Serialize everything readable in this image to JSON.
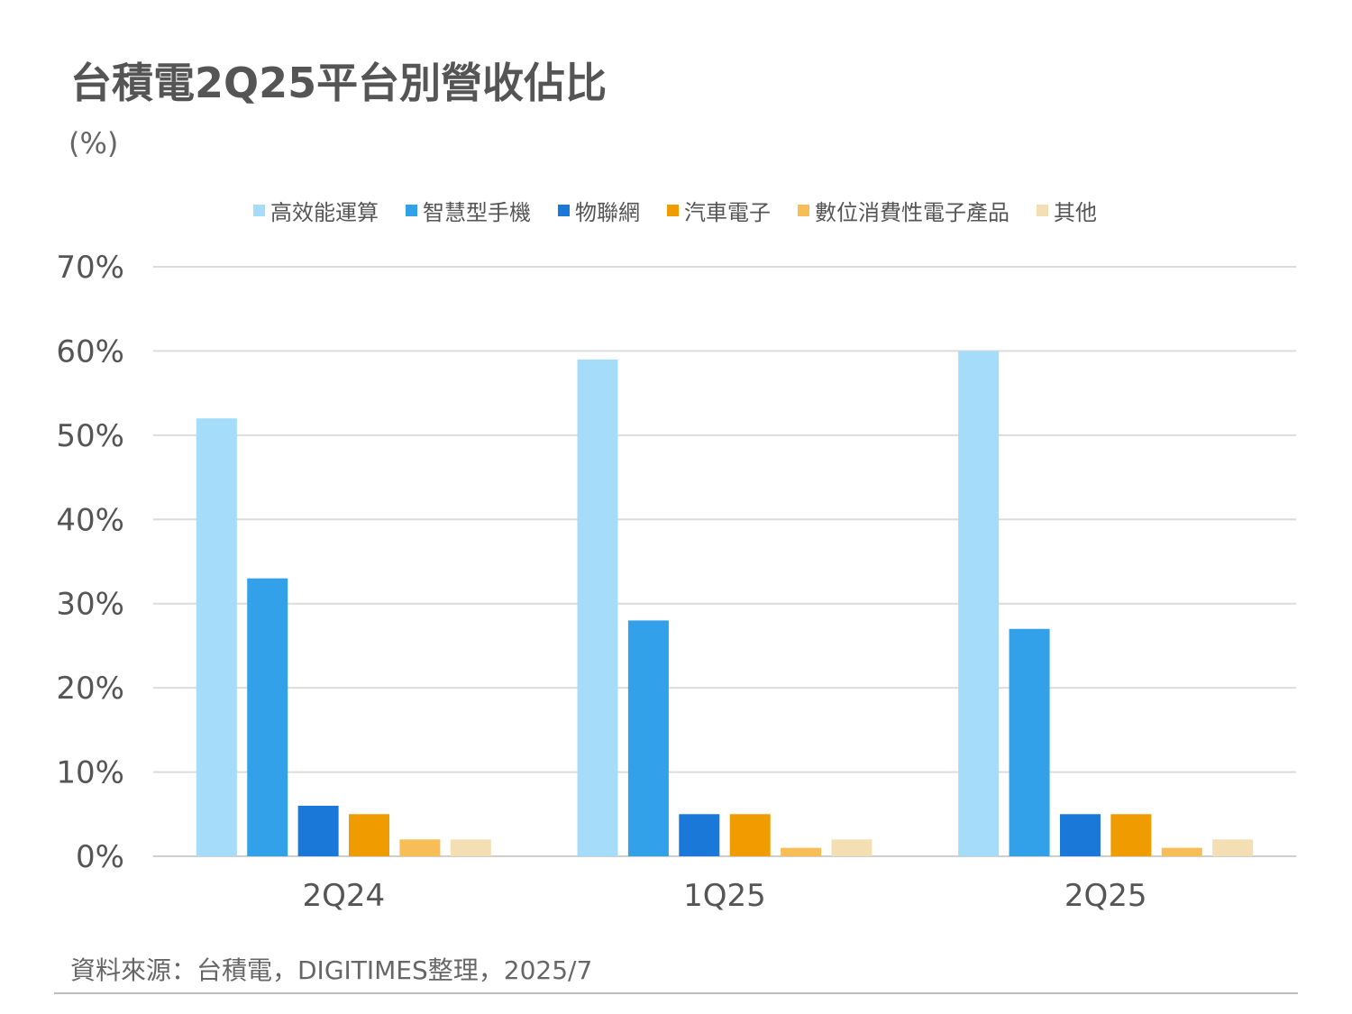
{
  "title": "台積電2Q25平台別營收佔比",
  "unit_label": "(%)",
  "source": "資料來源：台積電，DIGITIMES整理，2025/7",
  "chart_data": {
    "type": "bar",
    "title": "台積電2Q25平台別營收佔比",
    "ylabel": "(%)",
    "xlabel": "",
    "categories": [
      "2Q24",
      "1Q25",
      "2Q25"
    ],
    "ylim": [
      0,
      70
    ],
    "yticks": [
      "0%",
      "10%",
      "20%",
      "30%",
      "40%",
      "50%",
      "60%",
      "70%"
    ],
    "grid": true,
    "legend_position": "top",
    "series": [
      {
        "name": "高效能運算",
        "color": "#a4dcfa",
        "values": [
          52,
          59,
          60
        ]
      },
      {
        "name": "智慧型手機",
        "color": "#33a0ea",
        "values": [
          33,
          28,
          27
        ]
      },
      {
        "name": "物聯網",
        "color": "#1a78d8",
        "values": [
          6,
          5,
          5
        ]
      },
      {
        "name": "汽車電子",
        "color": "#f09c00",
        "values": [
          5,
          5,
          5
        ]
      },
      {
        "name": "數位消費性電子產品",
        "color": "#f7be58",
        "values": [
          2,
          1,
          1
        ]
      },
      {
        "name": "其他",
        "color": "#f4dfb4",
        "values": [
          2,
          2,
          2
        ]
      }
    ]
  }
}
